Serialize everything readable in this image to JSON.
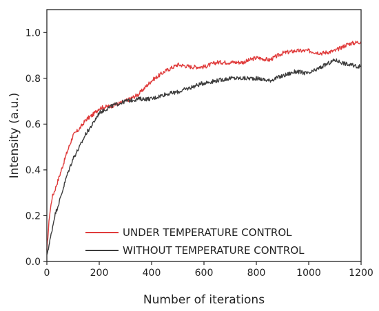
{
  "chart_data": {
    "type": "line",
    "title": "",
    "xlabel": "Number of iterations",
    "ylabel": "Intensity (a.u.)",
    "xlim": [
      0,
      1200
    ],
    "ylim": [
      0,
      1.1
    ],
    "xticks": [
      0,
      200,
      400,
      600,
      800,
      1000,
      1200
    ],
    "yticks": [
      0.0,
      0.2,
      0.4,
      0.6,
      0.8,
      1.0
    ],
    "xtick_labels": [
      "0",
      "200",
      "400",
      "600",
      "800",
      "1000",
      "1200"
    ],
    "ytick_labels": [
      "0.0",
      "0.2",
      "0.4",
      "0.6",
      "0.8",
      "1.0"
    ],
    "grid": false,
    "legend_position": "bottom-right",
    "series": [
      {
        "name": "UNDER TEMPERATURE CONTROL",
        "color": "#e03c3c",
        "x": [
          0,
          10,
          20,
          30,
          50,
          75,
          100,
          125,
          150,
          175,
          200,
          250,
          300,
          350,
          400,
          450,
          500,
          550,
          600,
          650,
          700,
          750,
          800,
          850,
          900,
          950,
          1000,
          1050,
          1100,
          1150,
          1200
        ],
        "y": [
          0.05,
          0.2,
          0.28,
          0.31,
          0.38,
          0.47,
          0.55,
          0.58,
          0.62,
          0.64,
          0.67,
          0.68,
          0.7,
          0.73,
          0.79,
          0.83,
          0.86,
          0.85,
          0.85,
          0.87,
          0.87,
          0.87,
          0.89,
          0.88,
          0.91,
          0.92,
          0.92,
          0.91,
          0.92,
          0.95,
          0.96
        ]
      },
      {
        "name": "WITHOUT TEMPERATURE CONTROL",
        "color": "#3c3c3c",
        "x": [
          0,
          10,
          20,
          30,
          50,
          75,
          100,
          125,
          150,
          175,
          200,
          250,
          300,
          350,
          400,
          450,
          500,
          550,
          600,
          650,
          700,
          750,
          800,
          850,
          900,
          950,
          1000,
          1050,
          1100,
          1150,
          1200
        ],
        "y": [
          0.03,
          0.08,
          0.14,
          0.2,
          0.27,
          0.37,
          0.45,
          0.5,
          0.56,
          0.6,
          0.65,
          0.68,
          0.7,
          0.71,
          0.71,
          0.73,
          0.74,
          0.76,
          0.78,
          0.79,
          0.8,
          0.8,
          0.8,
          0.79,
          0.81,
          0.83,
          0.82,
          0.85,
          0.88,
          0.86,
          0.85
        ]
      }
    ]
  }
}
